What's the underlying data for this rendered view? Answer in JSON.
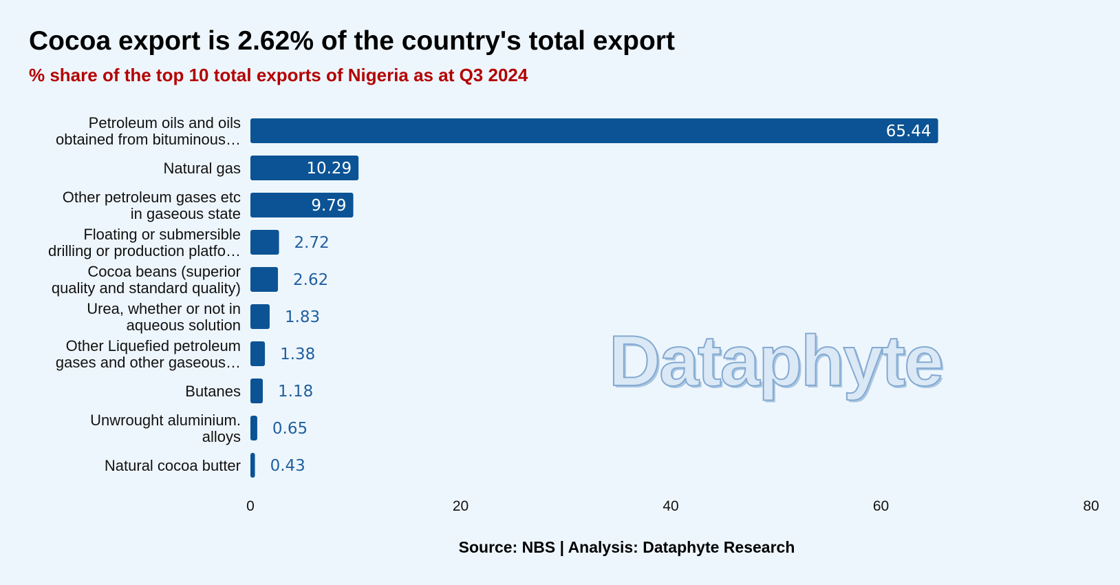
{
  "title": "Cocoa export is 2.62% of the country's total export",
  "subtitle": "% share of the top 10 total exports of Nigeria as at Q3 2024",
  "source": "Source: NBS | Analysis: Dataphyte Research",
  "watermark": "Dataphyte",
  "colors": {
    "background": "#eef6fd",
    "bar": "#0b5394",
    "bar_label_inside": "#ffffff",
    "bar_label_outside": "#1f5f9e",
    "subtitle": "#b30000"
  },
  "chart_data": {
    "type": "bar",
    "orientation": "horizontal",
    "categories": [
      [
        "Petroleum oils and oils",
        "obtained from bituminous…"
      ],
      [
        "Natural gas"
      ],
      [
        "Other petroleum gases etc",
        "in gaseous state"
      ],
      [
        "Floating or submersible",
        "drilling or production platfo…"
      ],
      [
        "Cocoa beans (superior",
        "quality and standard quality)"
      ],
      [
        "Urea, whether or not in",
        "aqueous solution"
      ],
      [
        "Other Liquefied petroleum",
        "gases and other gaseous…"
      ],
      [
        "Butanes"
      ],
      [
        "Unwrought aluminium.",
        "alloys"
      ],
      [
        "Natural cocoa butter"
      ]
    ],
    "values": [
      65.44,
      10.29,
      9.79,
      2.72,
      2.62,
      1.83,
      1.38,
      1.18,
      0.65,
      0.43
    ],
    "value_labels": [
      "65.44",
      "10.29",
      "9.79",
      "2.72",
      "2.62",
      "1.83",
      "1.38",
      "1.18",
      "0.65",
      "0.43"
    ],
    "xlim": [
      0,
      80
    ],
    "xticks": [
      0,
      20,
      40,
      60,
      80
    ],
    "grid": false,
    "legend": "none"
  }
}
